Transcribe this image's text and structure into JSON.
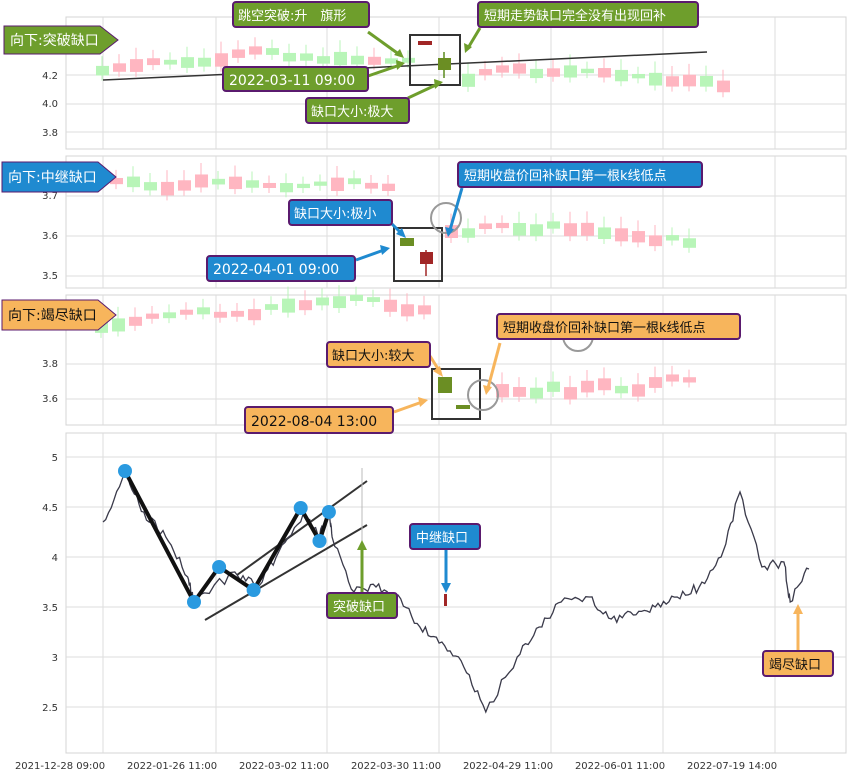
{
  "colors": {
    "up_fill": "#ffb6c1",
    "down_fill": "#b8f5b8",
    "flag_up": "#a12626",
    "flag_down": "#6b8e23",
    "green_label": "#6e9e2c",
    "blue_label": "#1f8ad0",
    "orange_label": "#f7b55c",
    "label_border": "#5a1a6e",
    "grid": "#dddddd",
    "line": "#3a3a4a"
  },
  "panels": [
    {
      "title": "向下:突破缺口",
      "tag_color": "#6e9e2c",
      "y_ticks": [
        "4.2",
        "4.0",
        "3.8"
      ],
      "annotations": {
        "label_1": "跳空突破:升　旗形",
        "label_2": "短期走势缺口完全没有出现回补",
        "time": "2022-03-11 09:00",
        "size": "缺口大小:极大"
      }
    },
    {
      "title": "向下:中继缺口",
      "tag_color": "#1f8ad0",
      "y_ticks": [
        "3.7",
        "3.6",
        "3.5"
      ],
      "annotations": {
        "label_1": "短期收盘价回补缺口第一根k线低点",
        "size": "缺口大小:极小",
        "time": "2022-04-01 09:00"
      }
    },
    {
      "title": "向下:竭尽缺口",
      "tag_color": "#f7b55c",
      "y_ticks": [
        "3.8",
        "3.6"
      ],
      "annotations": {
        "label_1": "短期收盘价回补缺口第一根k线低点",
        "size": "缺口大小:较大",
        "time": "2022-08-04 13:00"
      }
    }
  ],
  "main_panel": {
    "labels": {
      "breakout": "突破缺口",
      "continuation": "中继缺口",
      "exhaustion": "竭尽缺口"
    }
  },
  "chart_data": {
    "type": "line",
    "xlabel": "",
    "ylabel": "",
    "ylim": [
      2.3,
      5.3
    ],
    "y_ticks": [
      2.5,
      3.0,
      3.5,
      4.0,
      4.5,
      5.0
    ],
    "x_tick_labels": [
      "2021-12-28 09:00",
      "2022-01-26 11:00",
      "2022-03-02 11:00",
      "2022-03-30 11:00",
      "2022-04-29 11:00",
      "2022-06-01 11:00",
      "2022-07-19 14:00"
    ],
    "x": [
      "2021-12-28",
      "2022-01-04",
      "2022-01-10",
      "2022-01-17",
      "2022-01-24",
      "2022-01-26",
      "2022-02-08",
      "2022-02-15",
      "2022-02-22",
      "2022-03-02",
      "2022-03-07",
      "2022-03-10",
      "2022-03-11",
      "2022-03-18",
      "2022-03-25",
      "2022-04-01",
      "2022-04-08",
      "2022-04-15",
      "2022-04-22",
      "2022-04-29",
      "2022-05-09",
      "2022-05-16",
      "2022-05-23",
      "2022-06-01",
      "2022-06-08",
      "2022-06-15",
      "2022-06-22",
      "2022-06-29",
      "2022-07-06",
      "2022-07-13",
      "2022-07-19",
      "2022-07-26",
      "2022-08-02",
      "2022-08-04",
      "2022-08-10"
    ],
    "series": [
      {
        "values": [
          4.35,
          4.85,
          4.45,
          4.2,
          3.8,
          3.55,
          3.85,
          3.7,
          4.05,
          4.45,
          4.2,
          4.45,
          4.2,
          3.65,
          3.7,
          3.62,
          3.3,
          3.15,
          2.9,
          2.45,
          3.0,
          3.3,
          3.55,
          3.6,
          3.38,
          3.42,
          3.5,
          3.6,
          3.7,
          4.0,
          4.65,
          3.9,
          3.95,
          3.55,
          3.88
        ]
      }
    ],
    "pattern_points": [
      {
        "x": "2022-01-04",
        "y": 4.86
      },
      {
        "x": "2022-01-26",
        "y": 3.55
      },
      {
        "x": "2022-02-03",
        "y": 3.9
      },
      {
        "x": "2022-02-14",
        "y": 3.67
      },
      {
        "x": "2022-03-01",
        "y": 4.49
      },
      {
        "x": "2022-03-07",
        "y": 4.16
      },
      {
        "x": "2022-03-10",
        "y": 4.45
      }
    ]
  }
}
